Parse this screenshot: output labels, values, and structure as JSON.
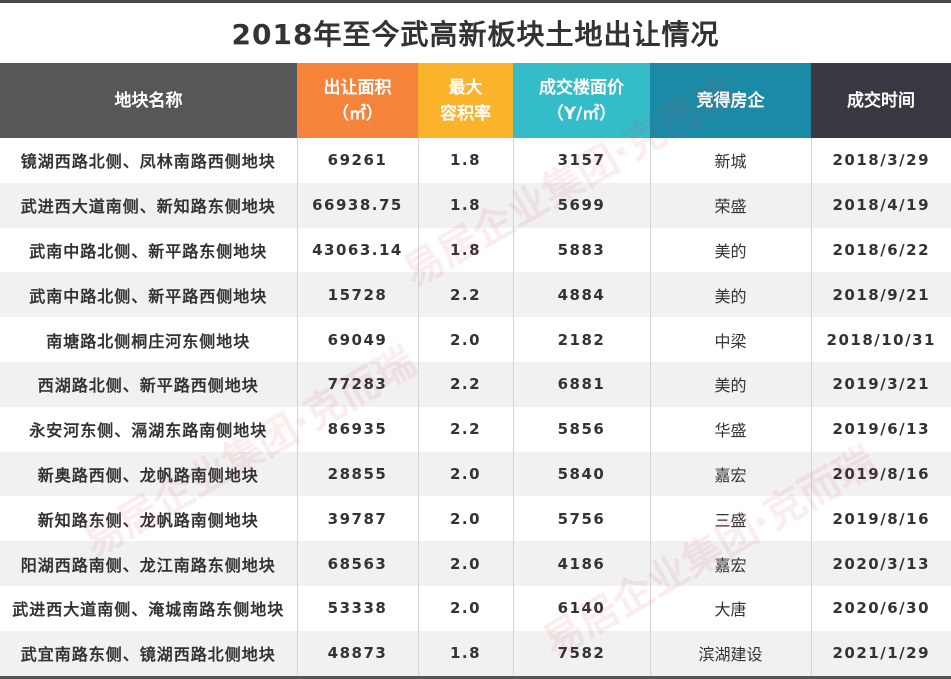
{
  "title": "2018年至今武高新板块土地出让情况",
  "columns": [
    {
      "line1": "地块名称",
      "line2": ""
    },
    {
      "line1": "出让面积",
      "line2": "（㎡）"
    },
    {
      "line1": "最大",
      "line2": "容积率"
    },
    {
      "line1": "成交楼面价",
      "line2": "（Y/㎡）"
    },
    {
      "line1": "竞得房企",
      "line2": ""
    },
    {
      "line1": "成交时间",
      "line2": ""
    }
  ],
  "header_colors": [
    "#57575a",
    "#f5833a",
    "#fbb32c",
    "#35bcc9",
    "#1a8aa6",
    "#383843"
  ],
  "rows": [
    {
      "name": "镜湖西路北侧、凤林南路西侧地块",
      "area": "69261",
      "far": "1.8",
      "price": "3157",
      "developer": "新城",
      "date": "2018/3/29"
    },
    {
      "name": "武进西大道南侧、新知路东侧地块",
      "area": "66938.75",
      "far": "1.8",
      "price": "5699",
      "developer": "荣盛",
      "date": "2018/4/19"
    },
    {
      "name": "武南中路北侧、新平路东侧地块",
      "area": "43063.14",
      "far": "1.8",
      "price": "5883",
      "developer": "美的",
      "date": "2018/6/22"
    },
    {
      "name": "武南中路北侧、新平路西侧地块",
      "area": "15728",
      "far": "2.2",
      "price": "4884",
      "developer": "美的",
      "date": "2018/9/21"
    },
    {
      "name": "南塘路北侧桐庄河东侧地块",
      "area": "69049",
      "far": "2.0",
      "price": "2182",
      "developer": "中梁",
      "date": "2018/10/31"
    },
    {
      "name": "西湖路北侧、新平路西侧地块",
      "area": "77283",
      "far": "2.2",
      "price": "6881",
      "developer": "美的",
      "date": "2019/3/21"
    },
    {
      "name": "永安河东侧、滆湖东路南侧地块",
      "area": "86935",
      "far": "2.2",
      "price": "5856",
      "developer": "华盛",
      "date": "2019/6/13"
    },
    {
      "name": "新奥路西侧、龙帆路南侧地块",
      "area": "28855",
      "far": "2.0",
      "price": "5840",
      "developer": "嘉宏",
      "date": "2019/8/16"
    },
    {
      "name": "新知路东侧、龙帆路南侧地块",
      "area": "39787",
      "far": "2.0",
      "price": "5756",
      "developer": "三盛",
      "date": "2019/8/16"
    },
    {
      "name": "阳湖西路南侧、龙江南路东侧地块",
      "area": "68563",
      "far": "2.0",
      "price": "4186",
      "developer": "嘉宏",
      "date": "2020/3/13"
    },
    {
      "name": "武进西大道南侧、淹城南路东侧地块",
      "area": "53338",
      "far": "2.0",
      "price": "6140",
      "developer": "大唐",
      "date": "2020/6/30"
    },
    {
      "name": "武宜南路东侧、镜湖西路北侧地块",
      "area": "48873",
      "far": "1.8",
      "price": "7582",
      "developer": "滨湖建设",
      "date": "2021/1/29"
    }
  ],
  "watermark": "易居企业集团·克而瑞"
}
